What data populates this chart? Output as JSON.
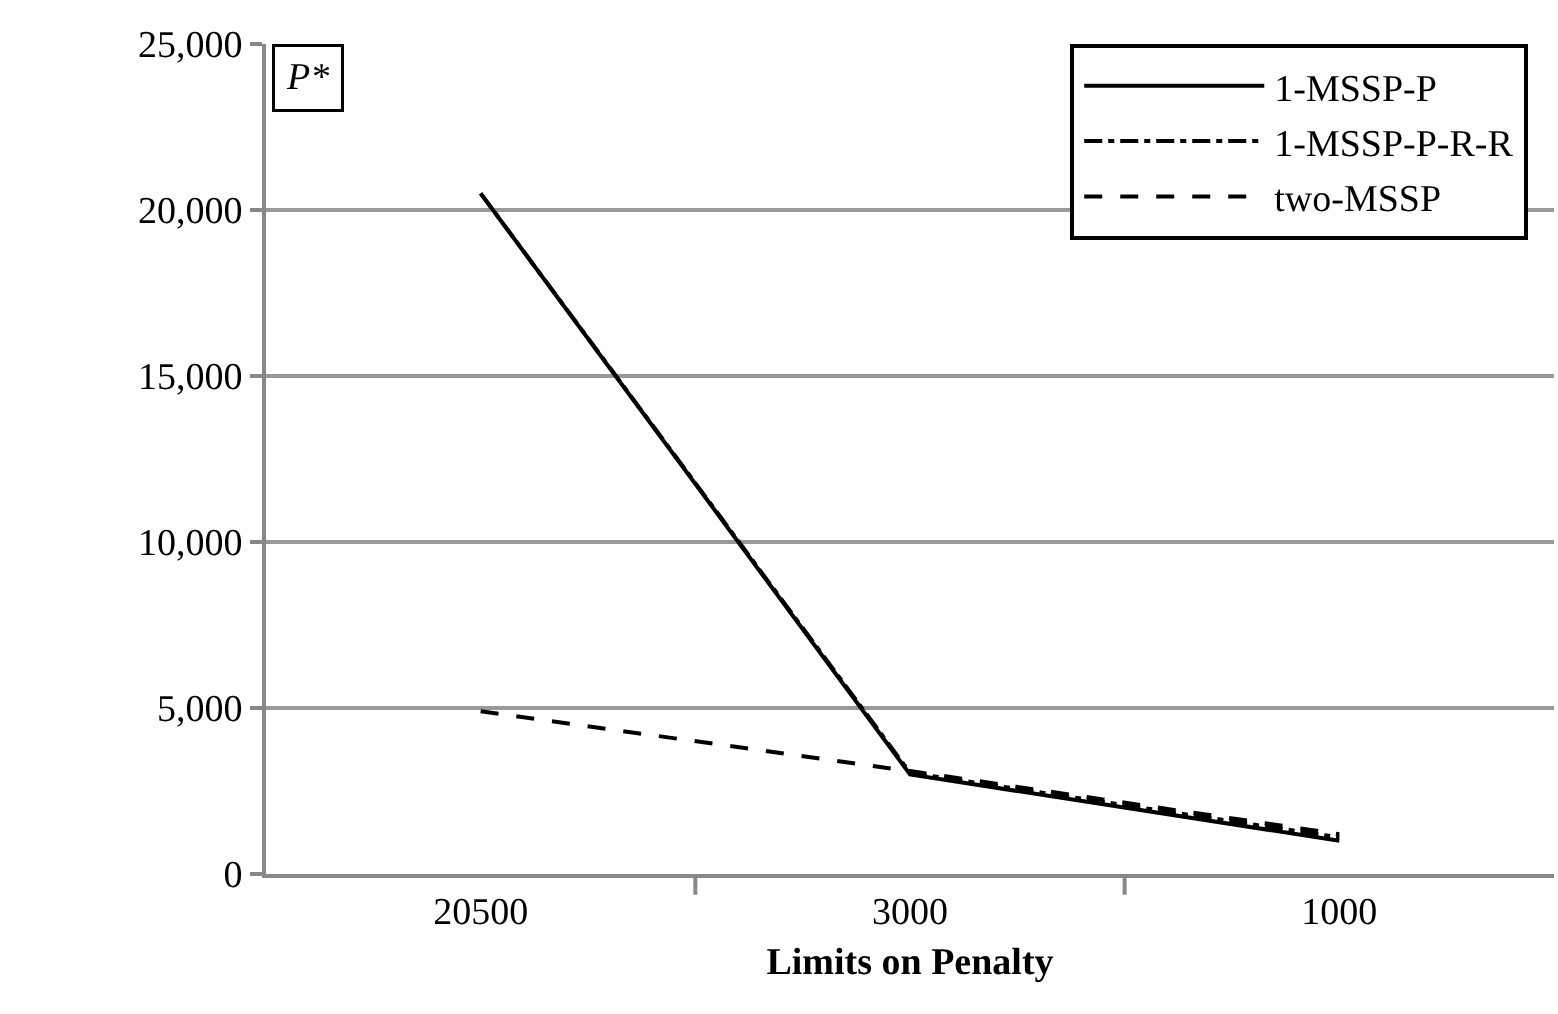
{
  "chart_data": {
    "type": "line",
    "xlabel": "Limits on Penalty",
    "categories": [
      "20500",
      "3000",
      "1000"
    ],
    "series": [
      {
        "name": "1-MSSP-P",
        "color": "#000000",
        "line_style": "solid",
        "values": [
          20500,
          3000,
          1000
        ]
      },
      {
        "name": "1-MSSP-P-R-R",
        "color": "#000000",
        "line_style": "dashdot",
        "values": [
          20500,
          3050,
          1100
        ]
      },
      {
        "name": "two-MSSP",
        "color": "#000000",
        "line_style": "dashed",
        "values": [
          4900,
          3100,
          1200
        ]
      }
    ],
    "ylim": [
      0,
      25000
    ],
    "yticks": [
      {
        "value": 0,
        "label": "0"
      },
      {
        "value": 5000,
        "label": "5,000"
      },
      {
        "value": 10000,
        "label": "10,000"
      },
      {
        "value": 15000,
        "label": "15,000"
      },
      {
        "value": 20000,
        "label": "20,000"
      },
      {
        "value": 25000,
        "label": "25,000"
      }
    ],
    "grid": "y",
    "legend": "top right",
    "marker": "none",
    "annotations": [
      "P*"
    ]
  }
}
